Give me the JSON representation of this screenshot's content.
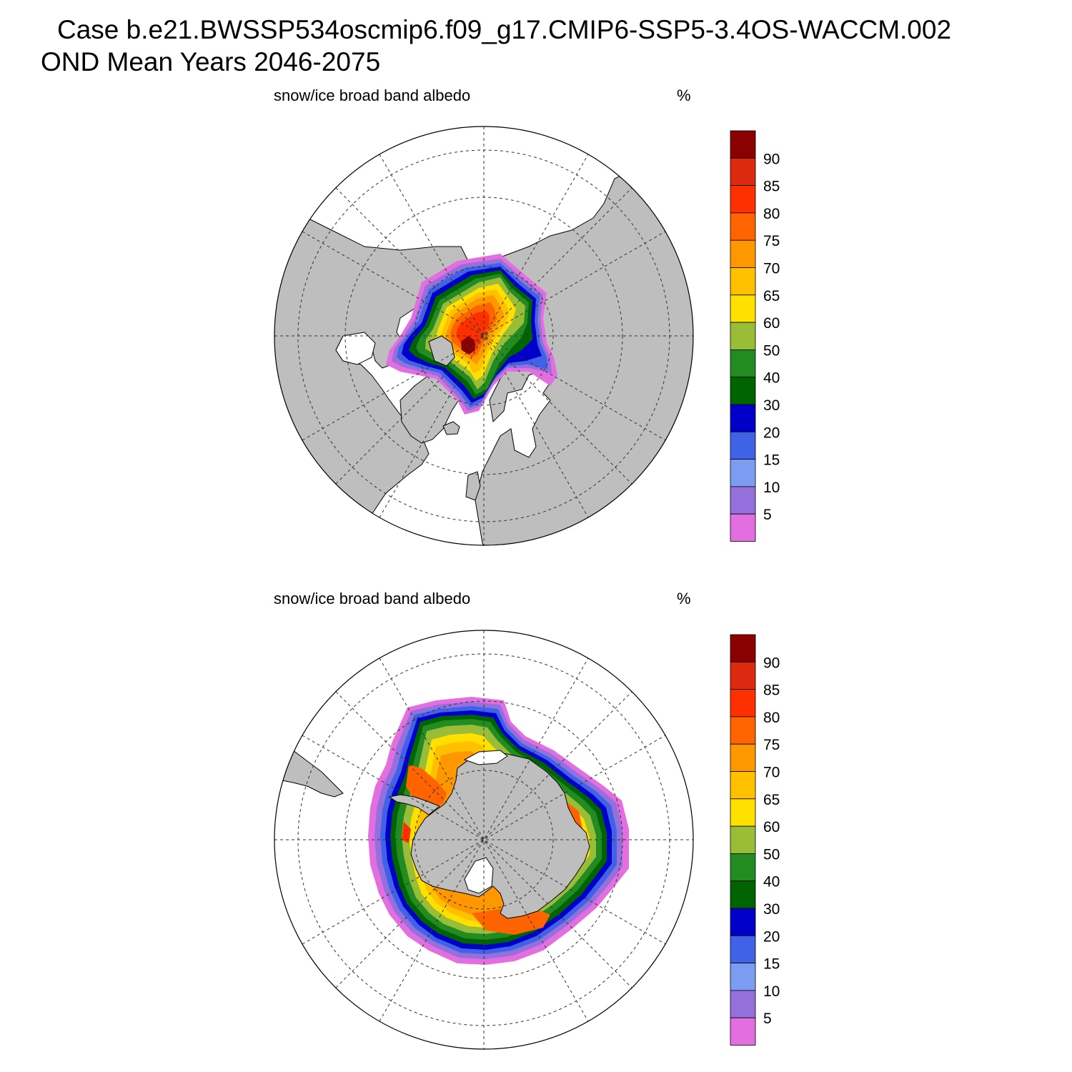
{
  "header": {
    "case_line": "Case b.e21.BWSSP534oscmip6.f09_g17.CMIP6-SSP5-3.4OS-WACCM.002",
    "period_line": "OND Mean   Years 2046-2075"
  },
  "colors": {
    "land": "#bebebe",
    "ocean": "#ffffff",
    "scale": [
      "#e36ee0",
      "#9370db",
      "#7b9cf0",
      "#3f62e6",
      "#0000c8",
      "#006400",
      "#228b22",
      "#9abd38",
      "#ffe000",
      "#ffc000",
      "#ff9800",
      "#ff6400",
      "#ff3000",
      "#dc2a10",
      "#8b0000"
    ]
  },
  "colorbar": {
    "labels": [
      "5",
      "10",
      "15",
      "20",
      "30",
      "40",
      "50",
      "60",
      "65",
      "70",
      "75",
      "80",
      "85",
      "90"
    ]
  },
  "panels": [
    {
      "id": "north",
      "left_label": "snow/ice broad band albedo",
      "right_label": "%",
      "hemisphere": "Northern"
    },
    {
      "id": "south",
      "left_label": "snow/ice broad band albedo",
      "right_label": "%",
      "hemisphere": "Southern"
    }
  ]
}
